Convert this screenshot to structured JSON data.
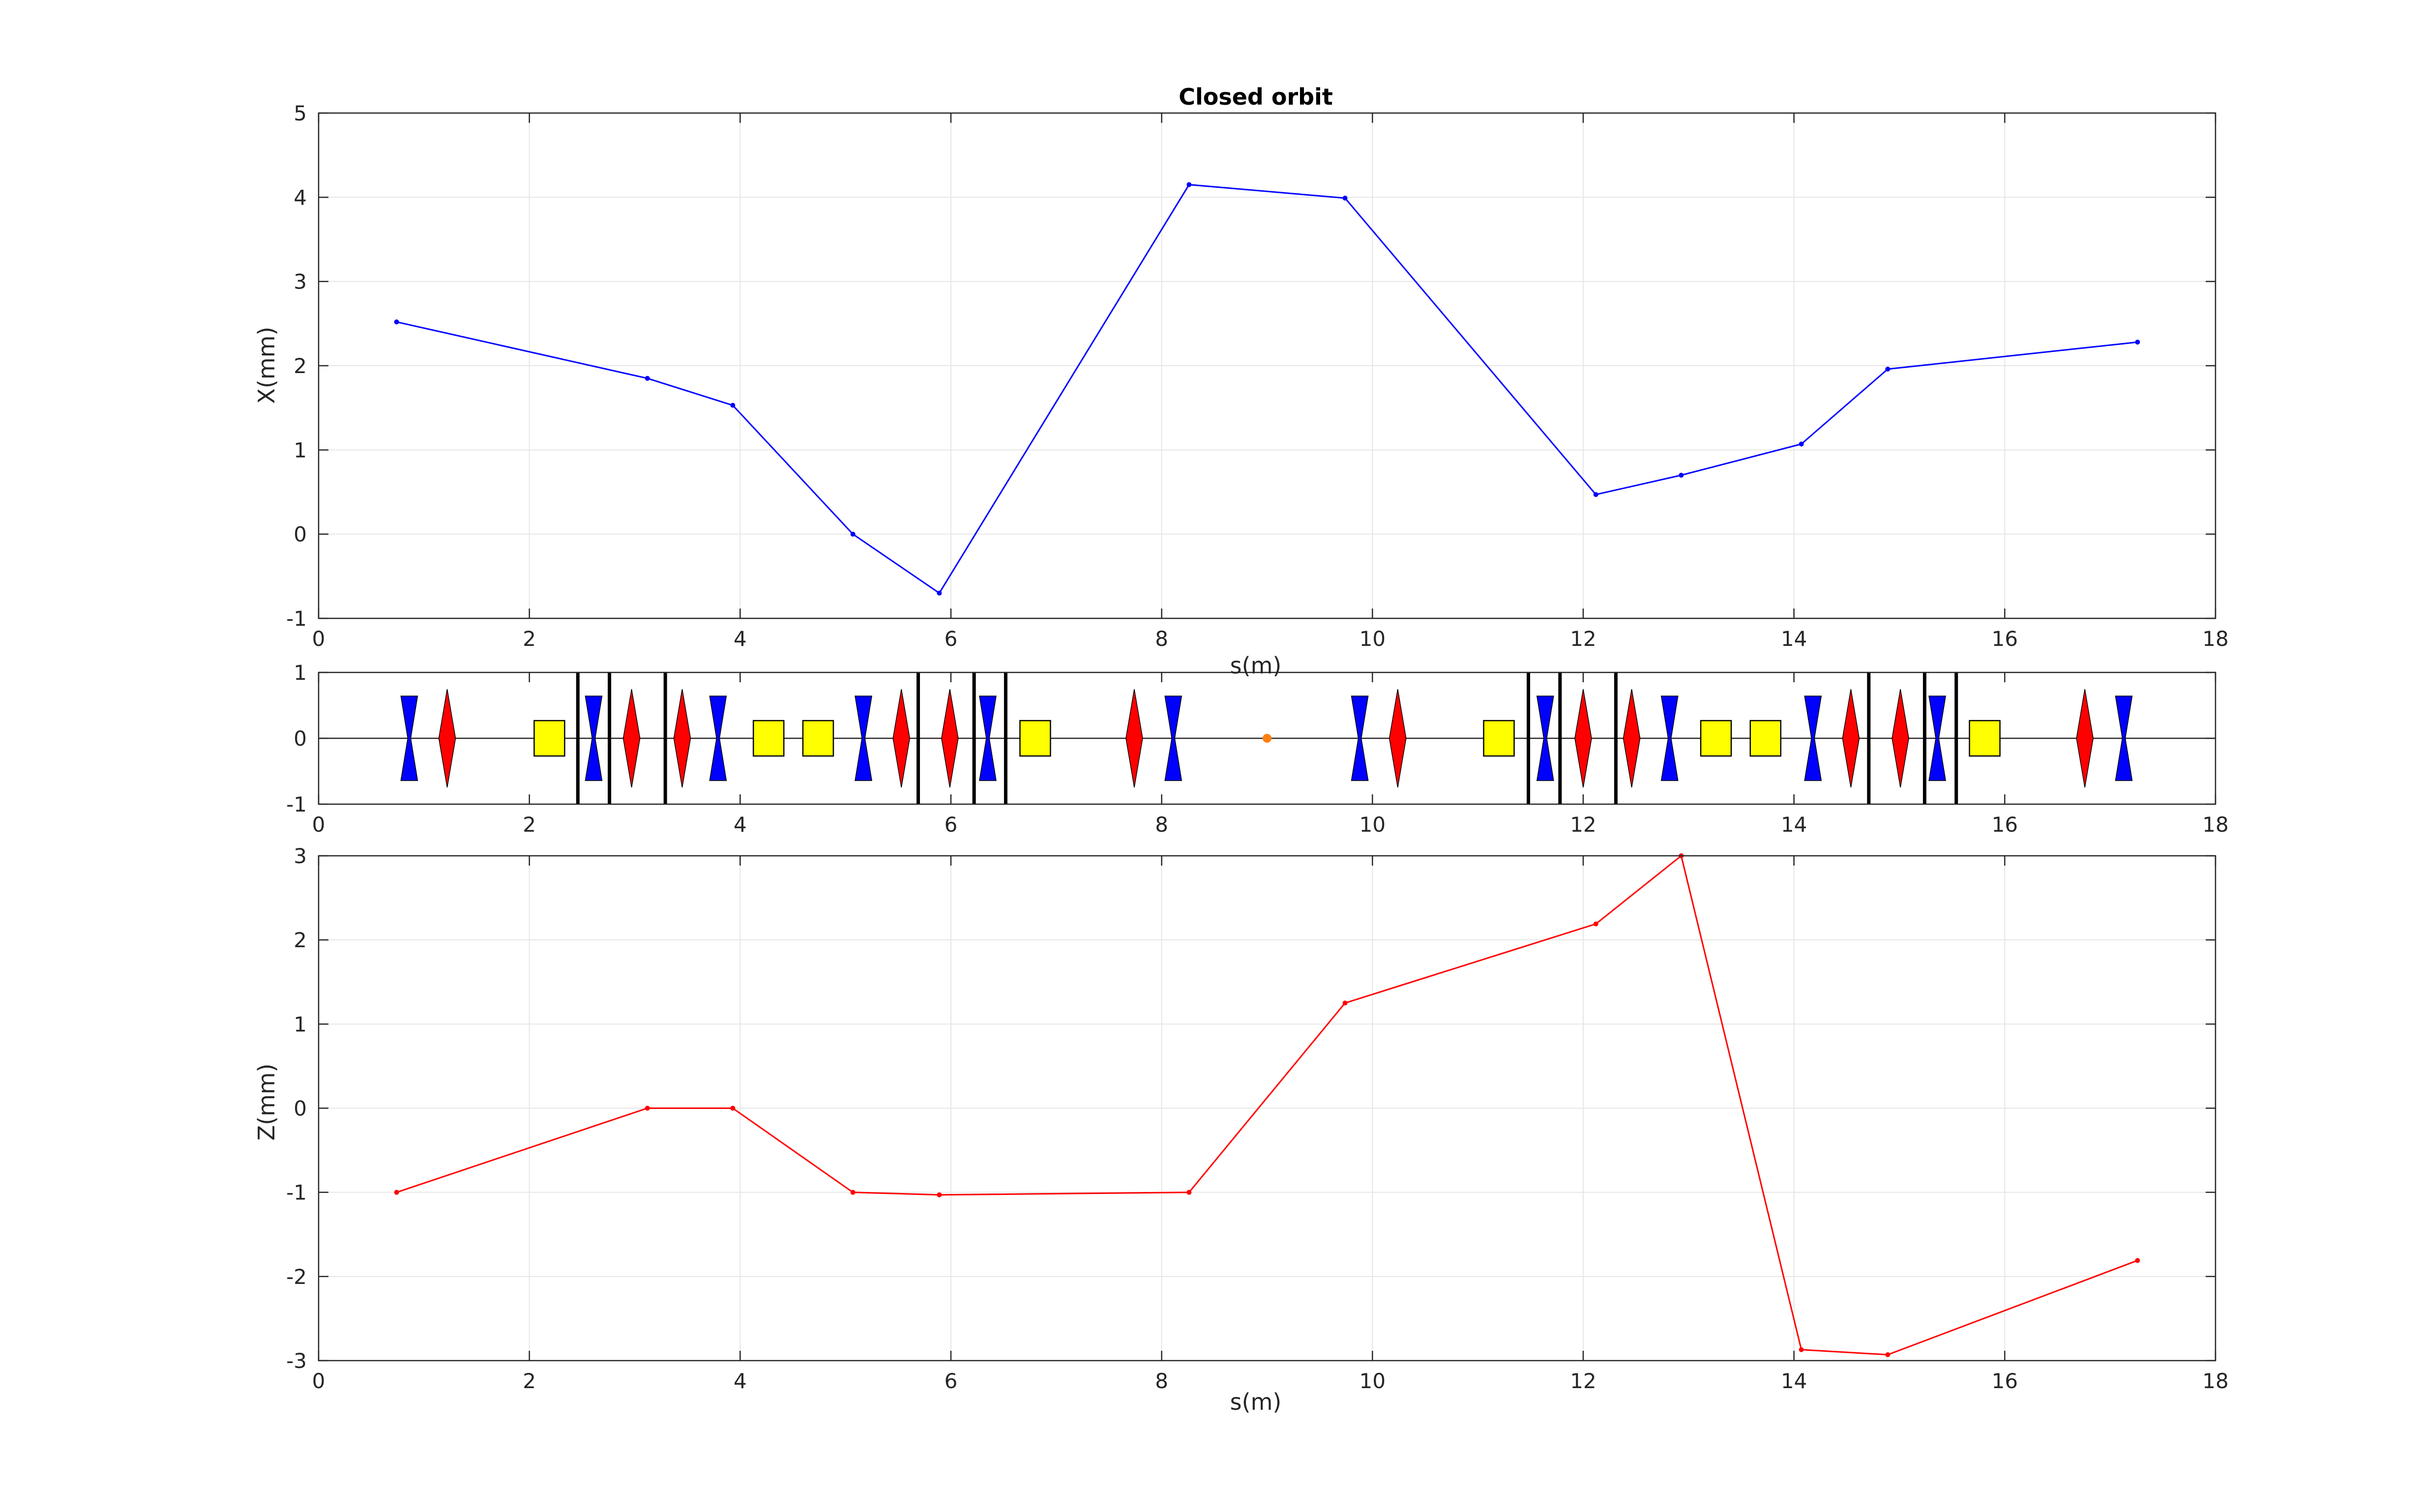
{
  "chart_data": [
    {
      "type": "line",
      "id": "x-orbit",
      "title": "Closed orbit",
      "xlabel": "s(m)",
      "ylabel": "X(mm)",
      "xlim": [
        0,
        18
      ],
      "ylim": [
        -1,
        5
      ],
      "xticks": [
        0,
        2,
        4,
        6,
        8,
        10,
        12,
        14,
        16,
        18
      ],
      "yticks": [
        -1,
        0,
        1,
        2,
        3,
        4,
        5
      ],
      "grid": true,
      "color": "#0000ff",
      "series": [
        {
          "x": [
            0.74,
            3.12,
            3.93,
            5.07,
            5.89,
            8.26,
            9.74,
            12.12,
            12.93,
            14.07,
            14.89,
            17.26
          ],
          "y": [
            2.52,
            1.85,
            1.53,
            0.0,
            -0.7,
            4.15,
            3.99,
            0.47,
            0.7,
            1.07,
            1.96,
            2.28
          ]
        }
      ]
    },
    {
      "type": "lattice",
      "id": "lattice",
      "xlim": [
        0,
        18
      ],
      "ylim": [
        -1,
        1
      ],
      "xticks": [
        0,
        2,
        4,
        6,
        8,
        10,
        12,
        14,
        16,
        18
      ],
      "yticks": [
        -1,
        0,
        1
      ],
      "colors": {
        "focusing": "#ff0000",
        "defocusing": "#0000ff",
        "dipole": "#ffff00",
        "marker": "#ff7f0e"
      },
      "defocusing_quads": [
        0.86,
        2.61,
        3.79,
        5.17,
        6.35,
        8.11,
        9.88,
        11.64,
        12.82,
        14.18,
        15.36,
        17.13
      ],
      "focusing_quads": [
        1.22,
        2.97,
        3.45,
        5.53,
        5.99,
        7.74,
        10.24,
        12.0,
        12.46,
        14.54,
        15.01,
        16.76
      ],
      "dipoles": [
        2.19,
        4.27,
        4.74,
        6.8,
        11.2,
        13.26,
        13.73,
        15.81
      ],
      "markers_vertical": [
        2.46,
        2.76,
        3.29,
        5.69,
        6.22,
        6.52,
        11.48,
        11.78,
        12.31,
        14.71,
        15.24,
        15.54
      ],
      "marker_point": 9.0
    },
    {
      "type": "line",
      "id": "z-orbit",
      "xlabel": "s(m)",
      "ylabel": "Z(mm)",
      "xlim": [
        0,
        18
      ],
      "ylim": [
        -3,
        3
      ],
      "xticks": [
        0,
        2,
        4,
        6,
        8,
        10,
        12,
        14,
        16,
        18
      ],
      "yticks": [
        -3,
        -2,
        -1,
        0,
        1,
        2,
        3
      ],
      "grid": true,
      "color": "#ff0000",
      "series": [
        {
          "x": [
            0.74,
            3.12,
            3.93,
            5.07,
            5.89,
            8.26,
            9.74,
            12.12,
            12.93,
            14.07,
            14.89,
            17.26
          ],
          "y": [
            -1.0,
            0.0,
            0.0,
            -1.0,
            -1.03,
            -1.0,
            1.25,
            2.19,
            3.0,
            -2.87,
            -2.93,
            -1.81
          ]
        }
      ]
    }
  ]
}
